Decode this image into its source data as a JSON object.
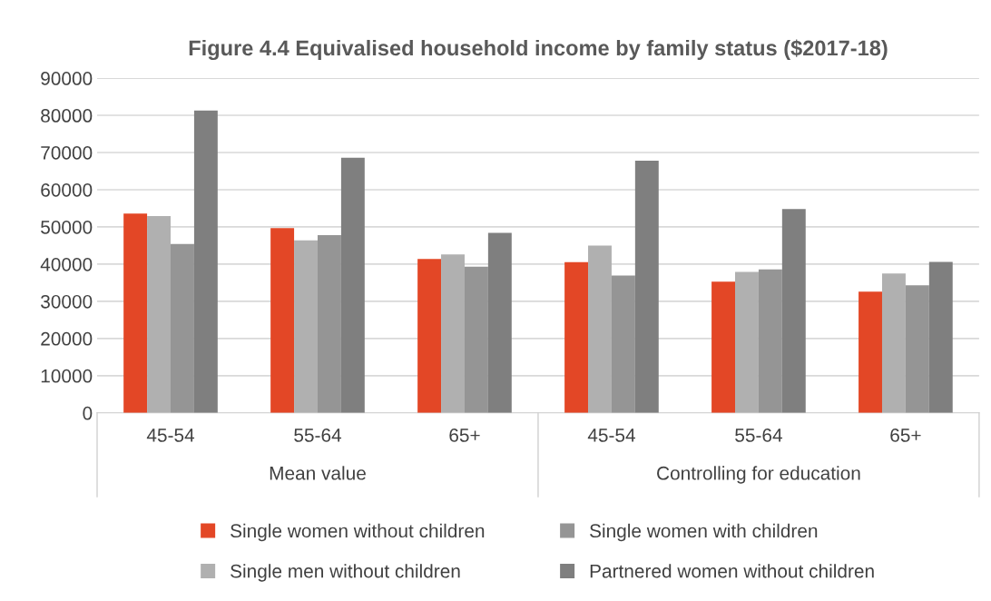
{
  "chart_data": {
    "type": "bar",
    "title": "Figure 4.4 Equivalised household income by family status ($2017-18)",
    "categories": [
      "45-54",
      "55-64",
      "65+",
      "45-54",
      "55-64",
      "65+"
    ],
    "annotations": [
      "Mean value",
      "Controlling for education"
    ],
    "series": [
      {
        "name": "Single women without children",
        "color": "#e34726",
        "values": [
          53600,
          49700,
          41400,
          40500,
          35300,
          32600
        ]
      },
      {
        "name": "Single men without children",
        "color": "#b0b0b0",
        "values": [
          52900,
          46400,
          42600,
          45000,
          37900,
          37500
        ]
      },
      {
        "name": "Single women with children",
        "color": "#959595",
        "values": [
          45400,
          47800,
          39300,
          36900,
          38600,
          34300
        ]
      },
      {
        "name": "Partnered women without children",
        "color": "#7f7f7f",
        "values": [
          81300,
          68600,
          48400,
          67800,
          54800,
          40600
        ]
      }
    ],
    "ylim": [
      0,
      90000
    ],
    "yticks": [
      0,
      10000,
      20000,
      30000,
      40000,
      50000,
      60000,
      70000,
      80000,
      90000
    ],
    "grid": "y",
    "legend": "bottom"
  }
}
